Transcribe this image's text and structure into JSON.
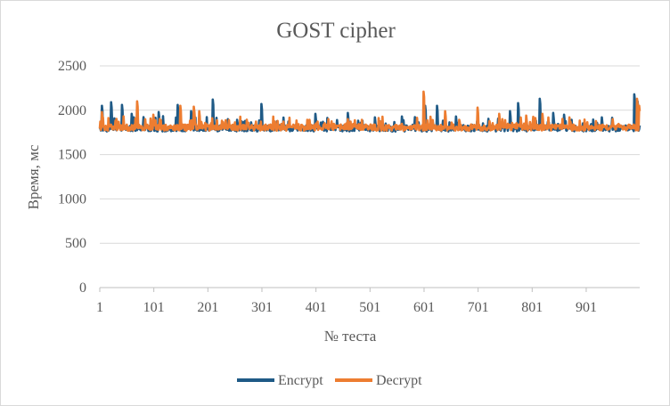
{
  "chart_data": {
    "type": "line",
    "title": "GOST cipher",
    "xlabel": "№ теста",
    "ylabel": "Время, мс",
    "ylim": [
      0,
      2500
    ],
    "yticks": [
      0,
      500,
      1000,
      1500,
      2000,
      2500
    ],
    "xlim": [
      1,
      1000
    ],
    "xticks": [
      1,
      101,
      201,
      301,
      401,
      501,
      601,
      701,
      801,
      901
    ],
    "grid": "horizontal",
    "legend": "bottom-center",
    "series": [
      {
        "name": "Encrypt",
        "color": "#1f5a86",
        "baseline_ms": 1800,
        "spikes": [
          {
            "x": 5,
            "y": 2050
          },
          {
            "x": 22,
            "y": 2090
          },
          {
            "x": 42,
            "y": 2060
          },
          {
            "x": 60,
            "y": 1960
          },
          {
            "x": 110,
            "y": 1980
          },
          {
            "x": 145,
            "y": 2060
          },
          {
            "x": 170,
            "y": 1990
          },
          {
            "x": 210,
            "y": 2120
          },
          {
            "x": 238,
            "y": 1900
          },
          {
            "x": 270,
            "y": 1880
          },
          {
            "x": 300,
            "y": 2070
          },
          {
            "x": 330,
            "y": 1850
          },
          {
            "x": 400,
            "y": 1960
          },
          {
            "x": 440,
            "y": 1890
          },
          {
            "x": 460,
            "y": 1970
          },
          {
            "x": 510,
            "y": 1920
          },
          {
            "x": 560,
            "y": 1930
          },
          {
            "x": 603,
            "y": 2050
          },
          {
            "x": 625,
            "y": 2050
          },
          {
            "x": 660,
            "y": 1930
          },
          {
            "x": 760,
            "y": 1990
          },
          {
            "x": 775,
            "y": 2080
          },
          {
            "x": 815,
            "y": 2130
          },
          {
            "x": 840,
            "y": 1970
          },
          {
            "x": 860,
            "y": 1950
          },
          {
            "x": 930,
            "y": 1920
          },
          {
            "x": 990,
            "y": 2180
          },
          {
            "x": 996,
            "y": 2100
          }
        ]
      },
      {
        "name": "Decrypt",
        "color": "#ed7d31",
        "baseline_ms": 1810,
        "spikes": [
          {
            "x": 5,
            "y": 1980
          },
          {
            "x": 70,
            "y": 2100
          },
          {
            "x": 100,
            "y": 1950
          },
          {
            "x": 150,
            "y": 2050
          },
          {
            "x": 175,
            "y": 2040
          },
          {
            "x": 185,
            "y": 1990
          },
          {
            "x": 240,
            "y": 1890
          },
          {
            "x": 330,
            "y": 1880
          },
          {
            "x": 460,
            "y": 1900
          },
          {
            "x": 600,
            "y": 2210
          },
          {
            "x": 640,
            "y": 1990
          },
          {
            "x": 700,
            "y": 2030
          },
          {
            "x": 740,
            "y": 1960
          },
          {
            "x": 790,
            "y": 1940
          },
          {
            "x": 820,
            "y": 1960
          },
          {
            "x": 870,
            "y": 1920
          },
          {
            "x": 950,
            "y": 1900
          },
          {
            "x": 995,
            "y": 2130
          },
          {
            "x": 999,
            "y": 2050
          }
        ]
      }
    ]
  }
}
